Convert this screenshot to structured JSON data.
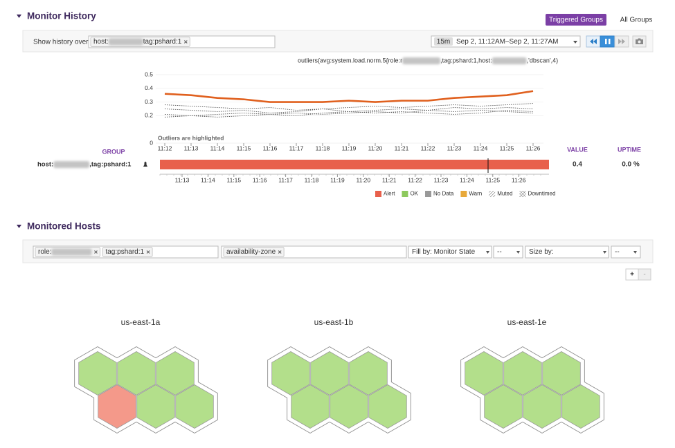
{
  "monitor_history": {
    "title": "Monitor History",
    "tabs": [
      "Triggered Groups",
      "All Groups"
    ],
    "show_history_label": "Show history over",
    "filter_tags": [
      "host:",
      "tag:pshard:1"
    ],
    "time_span": "15m",
    "time_range": "Sep 2, 11:12AM–Sep 2, 11:27AM"
  },
  "chart_data": {
    "type": "line",
    "query_parts": [
      "outliers(avg:system.load.norm.5{role:r",
      ",tag:pshard:1,host:",
      ",'dbscan',4)"
    ],
    "annotation": "Outliers are highlighted",
    "categories": [
      "11:12",
      "11:13",
      "11:14",
      "11:15",
      "11:16",
      "11:17",
      "11:18",
      "11:19",
      "11:20",
      "11:21",
      "11:22",
      "11:23",
      "11:24",
      "11:25",
      "11:26"
    ],
    "ylim": [
      0,
      0.5
    ],
    "yticks": [
      0,
      0.2,
      0.3,
      0.4,
      0.5
    ],
    "series": [
      {
        "color": "#e0601e",
        "style": "solid",
        "values": [
          0.36,
          0.35,
          0.33,
          0.32,
          0.3,
          0.3,
          0.3,
          0.31,
          0.3,
          0.31,
          0.31,
          0.33,
          0.34,
          0.35,
          0.38
        ]
      },
      {
        "color": "#555555",
        "style": "dotted",
        "values": [
          0.28,
          0.27,
          0.26,
          0.25,
          0.26,
          0.24,
          0.25,
          0.26,
          0.27,
          0.26,
          0.27,
          0.28,
          0.27,
          0.28,
          0.29
        ]
      },
      {
        "color": "#555555",
        "style": "dotted",
        "values": [
          0.25,
          0.24,
          0.23,
          0.24,
          0.22,
          0.23,
          0.25,
          0.23,
          0.24,
          0.25,
          0.24,
          0.26,
          0.25,
          0.26,
          0.25
        ]
      },
      {
        "color": "#555555",
        "style": "dotted",
        "values": [
          0.21,
          0.2,
          0.21,
          0.22,
          0.21,
          0.2,
          0.22,
          0.23,
          0.22,
          0.23,
          0.22,
          0.21,
          0.22,
          0.24,
          0.23
        ]
      },
      {
        "color": "#555555",
        "style": "dotted",
        "values": [
          0.19,
          0.2,
          0.19,
          0.2,
          0.21,
          0.22,
          0.21,
          0.22,
          0.23,
          0.22,
          0.24,
          0.23,
          0.24,
          0.23,
          0.22
        ]
      }
    ]
  },
  "groups": {
    "headers": [
      "GROUP",
      "VALUE",
      "UPTIME"
    ],
    "rows": [
      {
        "group_parts": [
          "host:",
          ",tag:pshard:1"
        ],
        "value": 0.4,
        "uptime": "0.0 %"
      }
    ],
    "timeline_ticks": [
      "11:13",
      "11:14",
      "11:15",
      "11:16",
      "11:17",
      "11:18",
      "11:19",
      "11:20",
      "11:21",
      "11:22",
      "11:23",
      "11:24",
      "11:25",
      "11:26"
    ],
    "legend": [
      {
        "name": "Alert",
        "color": "#e8604c"
      },
      {
        "name": "OK",
        "color": "#8dc95d"
      },
      {
        "name": "No Data",
        "color": "#999999"
      },
      {
        "name": "Warn",
        "color": "#e8a93a"
      },
      {
        "name": "Muted",
        "pattern": "hatch"
      },
      {
        "name": "Downtimed",
        "pattern": "crosshatch"
      }
    ]
  },
  "monitored_hosts": {
    "title": "Monitored Hosts",
    "filters": {
      "scope": [
        "role:",
        "tag:pshard:1"
      ],
      "group_by": [
        "availability-zone"
      ],
      "fill_by": "Fill by: Monitor State",
      "fill_range": "--",
      "size_by": "Size by:",
      "size_range": "--"
    },
    "zoom": [
      "+",
      "-"
    ],
    "zones": [
      {
        "name": "us-east-1a",
        "hosts": [
          "#b3df8b",
          "#b3df8b",
          "#b3df8b",
          "#f4998a",
          "#b3df8b",
          "#b3df8b"
        ]
      },
      {
        "name": "us-east-1b",
        "hosts": [
          "#b3df8b",
          "#b3df8b",
          "#b3df8b",
          "#b3df8b",
          "#b3df8b",
          "#b3df8b"
        ]
      },
      {
        "name": "us-east-1e",
        "hosts": [
          "#b3df8b",
          "#b3df8b",
          "#b3df8b",
          "#b3df8b",
          "#b3df8b",
          "#b3df8b"
        ]
      }
    ]
  }
}
